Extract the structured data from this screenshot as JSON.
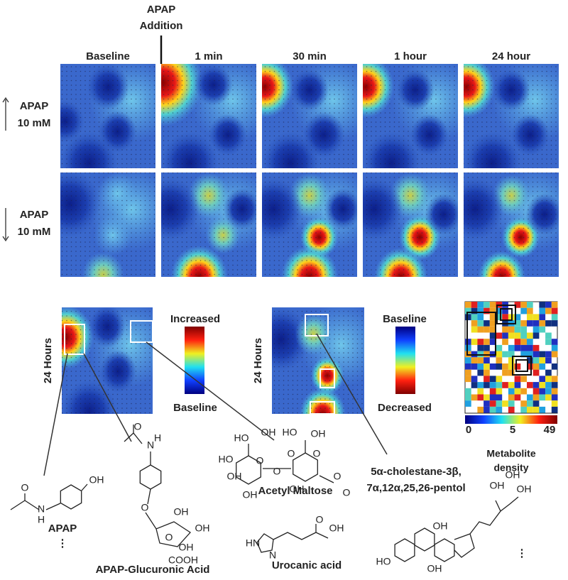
{
  "header": {
    "addition_lines": [
      "APAP",
      "Addition"
    ]
  },
  "columns": [
    "Baseline",
    "1 min",
    "30 min",
    "1 hour",
    "24 hour"
  ],
  "rows": [
    {
      "label_lines": [
        "APAP",
        "10 mM"
      ]
    },
    {
      "label_lines": [
        "APAP",
        "10 mM"
      ]
    }
  ],
  "details": [
    {
      "row_label": "24 Hours",
      "scale_top": "Increased",
      "scale_bottom": "Baseline"
    },
    {
      "row_label": "24 Hours",
      "scale_top": "Baseline",
      "scale_bottom": "Decreased"
    }
  ],
  "density": {
    "ticks": [
      0,
      5,
      49
    ],
    "label_lines": [
      "Metabolite",
      "density"
    ]
  },
  "molecules": [
    {
      "name": "APAP",
      "more": "⋮",
      "atoms": [
        "OH",
        "N",
        "H",
        "O"
      ]
    },
    {
      "name": "APAP-Glucuronic Acid",
      "atoms": [
        "N",
        "H",
        "O",
        "O",
        "O",
        "OH",
        "OH",
        "OH",
        "COOH"
      ]
    },
    {
      "name": "Acetyl Maltose",
      "atoms": [
        "OH",
        "OH",
        "O",
        "HO",
        "HO",
        "OH",
        "O",
        "O",
        "OH",
        "HO",
        "OH",
        "O",
        "O",
        "O"
      ]
    },
    {
      "name": "Urocanic acid",
      "atoms": [
        "HN",
        "N",
        "O",
        "OH"
      ]
    },
    {
      "name_lines": [
        "5α-cholestane-3β,",
        "7α,12α,25,26-pentol"
      ],
      "more": "⋮",
      "atoms": [
        "OH",
        "OH",
        "OH",
        "HO",
        "OH",
        "OH"
      ]
    }
  ]
}
